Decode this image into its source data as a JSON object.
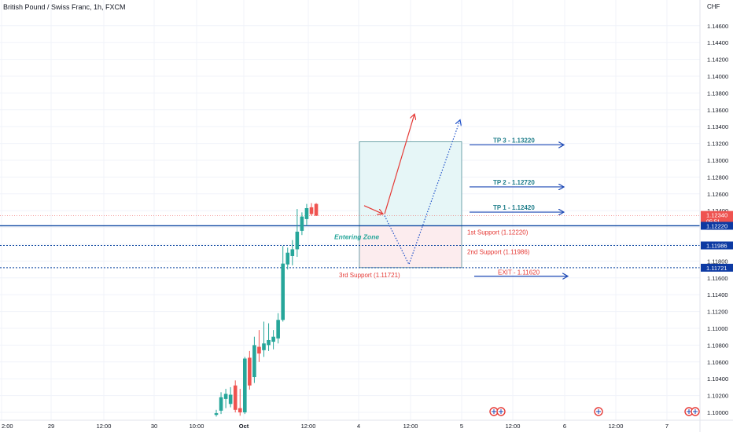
{
  "header": {
    "symbol_title": "British Pound / Swiss Franc, 1h, FXCM",
    "currency": "CHF"
  },
  "chart_data": {
    "type": "candlestick",
    "colors": {
      "up": "#26a69a",
      "down": "#ef5350",
      "horizontal_line": "#0d47a1",
      "target_arrows": "#1c48b5",
      "support_text": "#e53935",
      "tp_text": "#1e7d8a",
      "zone_upper": "#e6f6f7",
      "zone_lower": "#fcecee"
    },
    "y_axis": {
      "min": 1.1,
      "max": 1.146,
      "ticks": [
        "1.10000",
        "1.10200",
        "1.10400",
        "1.10600",
        "1.10800",
        "1.11000",
        "1.11200",
        "1.11400",
        "1.11600",
        "1.11800",
        "1.12000",
        "1.12200",
        "1.12400",
        "1.12600",
        "1.12800",
        "1.13000",
        "1.13200",
        "1.13400",
        "1.13600",
        "1.13800",
        "1.14000",
        "1.14200",
        "1.14400",
        "1.14600"
      ]
    },
    "x_axis": {
      "ticks": [
        "2:00",
        "29",
        "12:00",
        "30",
        "10:00",
        "Oct",
        "12:00",
        "4",
        "12:00",
        "5",
        "12:00",
        "6",
        "12:00",
        "7"
      ]
    },
    "price_labels": [
      {
        "value": "1.12340",
        "sub": "05:51",
        "kind": "current"
      },
      {
        "value": "1.12220",
        "kind": "line"
      },
      {
        "value": "1.11986",
        "kind": "line"
      },
      {
        "value": "1.11721",
        "kind": "line"
      }
    ],
    "candles": [
      {
        "o": 1.0997,
        "h": 1.1003,
        "l": 1.0995,
        "c": 1.0999
      },
      {
        "o": 1.1002,
        "h": 1.1024,
        "l": 1.0998,
        "c": 1.1018
      },
      {
        "o": 1.1016,
        "h": 1.1028,
        "l": 1.1005,
        "c": 1.1022
      },
      {
        "o": 1.101,
        "h": 1.103,
        "l": 1.1006,
        "c": 1.1021
      },
      {
        "o": 1.1032,
        "h": 1.1038,
        "l": 1.1,
        "c": 1.1003
      },
      {
        "o": 1.1005,
        "h": 1.1028,
        "l": 1.0996,
        "c": 1.1
      },
      {
        "o": 1.1,
        "h": 1.1066,
        "l": 1.0998,
        "c": 1.1064
      },
      {
        "o": 1.1065,
        "h": 1.1073,
        "l": 1.1027,
        "c": 1.1032
      },
      {
        "o": 1.1042,
        "h": 1.109,
        "l": 1.1035,
        "c": 1.108
      },
      {
        "o": 1.1078,
        "h": 1.1098,
        "l": 1.106,
        "c": 1.107
      },
      {
        "o": 1.1074,
        "h": 1.1108,
        "l": 1.1066,
        "c": 1.1082
      },
      {
        "o": 1.108,
        "h": 1.1106,
        "l": 1.1073,
        "c": 1.1086
      },
      {
        "o": 1.1084,
        "h": 1.1098,
        "l": 1.1075,
        "c": 1.109
      },
      {
        "o": 1.1088,
        "h": 1.1118,
        "l": 1.1082,
        "c": 1.111
      },
      {
        "o": 1.111,
        "h": 1.1198,
        "l": 1.1108,
        "c": 1.1177
      },
      {
        "o": 1.1176,
        "h": 1.1196,
        "l": 1.117,
        "c": 1.119
      },
      {
        "o": 1.1186,
        "h": 1.1205,
        "l": 1.1175,
        "c": 1.1194
      },
      {
        "o": 1.1194,
        "h": 1.1242,
        "l": 1.1185,
        "c": 1.1215
      },
      {
        "o": 1.1216,
        "h": 1.1238,
        "l": 1.1211,
        "c": 1.1233
      },
      {
        "o": 1.123,
        "h": 1.1248,
        "l": 1.1222,
        "c": 1.1243
      },
      {
        "o": 1.1244,
        "h": 1.1249,
        "l": 1.1234,
        "c": 1.1236
      },
      {
        "o": 1.1248,
        "h": 1.1249,
        "l": 1.1234,
        "c": 1.1234
      }
    ],
    "horizontal_lines": [
      {
        "value": 1.1222,
        "style": "solid"
      },
      {
        "value": 1.11986,
        "style": "dotted"
      },
      {
        "value": 1.11721,
        "style": "dotted"
      },
      {
        "value": 1.1234,
        "style": "dotted-red"
      }
    ],
    "zone": {
      "top": 1.1322,
      "mid": 1.1222,
      "bottom": 1.11721
    },
    "annotations": {
      "entering_zone": "Entering Zone",
      "support_1": "1st Support (1.12220)",
      "support_2": "2nd Support (1.11986)",
      "support_3": "3rd Support (1.11721)",
      "exit": "EXIT - 1.11620",
      "tp1": "TP 1 - 1.12420",
      "tp2": "TP 2 - 1.12720",
      "tp3": "TP 3 - 1.13220"
    },
    "paths": {
      "red_arrow_1": [
        1.1246,
        1.1236
      ],
      "red_arrow_2": [
        1.1236,
        1.1355
      ],
      "dotted_path": [
        1.1234,
        1.1176,
        1.1348
      ]
    },
    "grid": true
  }
}
